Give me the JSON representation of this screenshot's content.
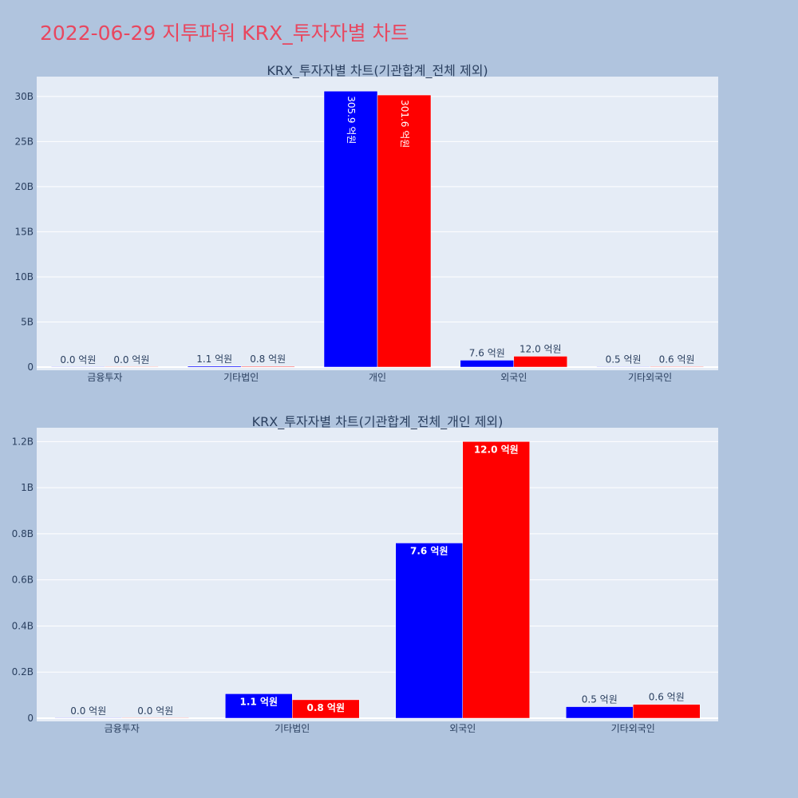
{
  "page_title": "2022-06-29 지투파워 KRX_투자자별 차트",
  "colors": {
    "background": "#b0c4de",
    "plot_bg": "#e5ecf6",
    "title": "#e8475f",
    "buy": "#0000ff",
    "sell": "#ff0000"
  },
  "chart_data": [
    {
      "type": "bar",
      "title": "KRX_투자자별 차트(기관합계_전체 제외)",
      "categories": [
        "금융투자",
        "기타법인",
        "개인",
        "외국인",
        "기타외국인"
      ],
      "series": [
        {
          "color": "#0000ff",
          "values": [
            0,
            110000000.0,
            30590000000.0,
            760000000.0,
            50000000.0
          ],
          "labels": [
            "0.0 억원",
            "1.1 억원",
            "305.9 억원",
            "7.6 억원",
            "0.5 억원"
          ]
        },
        {
          "color": "#ff0000",
          "values": [
            0,
            80000000.0,
            30160000000.0,
            1200000000.0,
            60000000.0
          ],
          "labels": [
            "0.0 억원",
            "0.8 억원",
            "301.6 억원",
            "12.0 억원",
            "0.6 억원"
          ]
        }
      ],
      "yticks": [
        0,
        5000000000.0,
        10000000000.0,
        15000000000.0,
        20000000000.0,
        25000000000.0,
        30000000000.0
      ],
      "ytick_labels": [
        "0",
        "5B",
        "10B",
        "15B",
        "20B",
        "25B",
        "30B"
      ],
      "ylim": [
        0,
        32200000000.0
      ],
      "label_style": "vertical-inside"
    },
    {
      "type": "bar",
      "title": "KRX_투자자별 차트(기관합계_전체_개인 제외)",
      "categories": [
        "금융투자",
        "기타법인",
        "외국인",
        "기타외국인"
      ],
      "series": [
        {
          "color": "#0000ff",
          "values": [
            0,
            106000000.0,
            760000000.0,
            50000000.0
          ],
          "labels": [
            "0.0 억원",
            "1.1 억원",
            "7.6 억원",
            "0.5 억원"
          ]
        },
        {
          "color": "#ff0000",
          "values": [
            0,
            80000000.0,
            1200000000.0,
            60000000.0
          ],
          "labels": [
            "0.0 억원",
            "0.8 억원",
            "12.0 억원",
            "0.6 억원"
          ]
        }
      ],
      "yticks": [
        0,
        200000000.0,
        400000000.0,
        600000000.0,
        800000000.0,
        1000000000.0,
        1200000000.0
      ],
      "ytick_labels": [
        "0",
        "0.2B",
        "0.4B",
        "0.6B",
        "0.8B",
        "1B",
        "1.2B"
      ],
      "ylim": [
        0,
        1260000000.0
      ],
      "label_style": "horizontal-inside"
    }
  ]
}
